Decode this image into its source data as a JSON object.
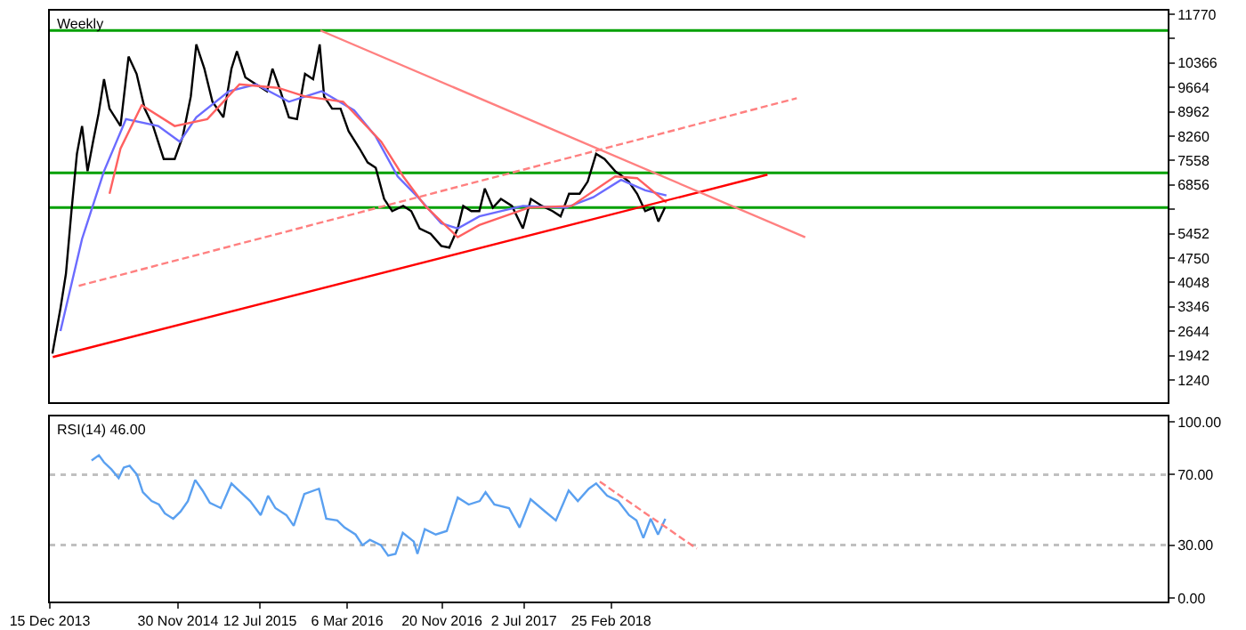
{
  "chart_data": [
    {
      "type": "line",
      "title": "Weekly",
      "xlim": [
        "2013-12-15",
        "2022-04-25"
      ],
      "ylim": [
        600,
        11870
      ],
      "yticks": [
        1240,
        1942,
        2644,
        3346,
        4048,
        4750,
        5452,
        {
          "value": 6154,
          "label": null
        },
        6856,
        7558,
        8260,
        8962,
        9664,
        10366,
        {
          "value": 11068,
          "label": null
        },
        11770
      ],
      "tick_labels": "y",
      "grid": false,
      "marker": "none",
      "line_style": "solid",
      "ref_lines": [
        {
          "axis": "y",
          "value": 11300,
          "color": "#00a000"
        },
        {
          "axis": "y",
          "value": 7200,
          "color": "#00a000"
        },
        {
          "axis": "y",
          "value": 6200,
          "color": "#00a000"
        }
      ],
      "series": [
        {
          "color": "#000000",
          "x": [
            "2013-12-22",
            "2014-01-13",
            "2014-01-28",
            "2014-02-12",
            "2014-02-27",
            "2014-03-13",
            "2014-03-28",
            "2014-04-12",
            "2014-04-27",
            "2014-05-12",
            "2014-05-27",
            "2014-06-26",
            "2014-07-18",
            "2014-08-09",
            "2014-08-31",
            "2014-09-23",
            "2014-10-22",
            "2014-11-21",
            "2014-12-13",
            "2015-01-04",
            "2015-01-19",
            "2015-02-10",
            "2015-03-04",
            "2015-04-03",
            "2015-04-25",
            "2015-05-10",
            "2015-06-02",
            "2015-07-01",
            "2015-07-31",
            "2015-08-15",
            "2015-09-06",
            "2015-09-29",
            "2015-10-21",
            "2015-11-12",
            "2015-12-04",
            "2015-12-22",
            "2016-01-03",
            "2016-01-25",
            "2016-02-17",
            "2016-03-10",
            "2016-04-09",
            "2016-05-01",
            "2016-05-23",
            "2016-06-15",
            "2016-07-07",
            "2016-08-06",
            "2016-08-28",
            "2016-09-20",
            "2016-10-20",
            "2016-11-18",
            "2016-12-10",
            "2017-01-02",
            "2017-01-17",
            "2017-02-08",
            "2017-03-02",
            "2017-03-17",
            "2017-04-08",
            "2017-04-30",
            "2017-05-30",
            "2017-06-29",
            "2017-07-21",
            "2017-08-20",
            "2017-09-18",
            "2017-10-10",
            "2017-11-02",
            "2017-12-01",
            "2017-12-23",
            "2018-01-15",
            "2018-02-07",
            "2018-03-08",
            "2018-03-22",
            "2018-04-14",
            "2018-05-07",
            "2018-05-29",
            "2018-06-21",
            "2018-07-04",
            "2018-07-22"
          ],
          "values": [
            2000,
            3300,
            4300,
            6100,
            7750,
            8550,
            7250,
            8100,
            8900,
            9900,
            9050,
            8550,
            10550,
            10050,
            9050,
            8550,
            7600,
            7600,
            8250,
            9400,
            10900,
            10200,
            9250,
            8800,
            10200,
            10700,
            9950,
            9750,
            9550,
            10200,
            9550,
            8800,
            8750,
            10050,
            9900,
            10900,
            9400,
            9050,
            9050,
            8400,
            7900,
            7500,
            7350,
            6450,
            6100,
            6250,
            6100,
            5600,
            5450,
            5100,
            5050,
            5600,
            6250,
            6100,
            6100,
            6750,
            6200,
            6450,
            6250,
            5600,
            6450,
            6250,
            6100,
            5950,
            6600,
            6600,
            6950,
            7750,
            7600,
            7250,
            7150,
            6950,
            6600,
            6100,
            6200,
            5800,
            6200
          ]
        },
        {
          "color": "#6b6bff",
          "x": [
            "2014-01-13",
            "2014-03-13",
            "2014-05-12",
            "2014-07-11",
            "2014-10-07",
            "2014-12-05",
            "2015-01-19",
            "2015-04-18",
            "2015-07-01",
            "2015-09-29",
            "2015-12-27",
            "2016-03-25",
            "2016-05-23",
            "2016-07-22",
            "2016-09-20",
            "2016-11-18",
            "2017-01-02",
            "2017-03-02",
            "2017-06-29",
            "2017-10-25",
            "2018-01-07",
            "2018-03-24",
            "2018-05-29",
            "2018-07-26"
          ],
          "values": [
            2650,
            5300,
            7250,
            8750,
            8550,
            8100,
            8800,
            9550,
            9750,
            9250,
            9550,
            9000,
            8250,
            7100,
            6450,
            5750,
            5600,
            5950,
            6250,
            6200,
            6500,
            7000,
            6700,
            6550
          ]
        },
        {
          "color": "#ff6060",
          "x": [
            "2014-05-27",
            "2014-06-26",
            "2014-08-23",
            "2014-11-21",
            "2015-02-18",
            "2015-05-17",
            "2015-08-30",
            "2015-11-12",
            "2016-02-24",
            "2016-06-07",
            "2016-08-06",
            "2016-10-05",
            "2017-01-02",
            "2017-03-02",
            "2017-07-15",
            "2017-11-09",
            "2018-03-08",
            "2018-05-07",
            "2018-07-26"
          ],
          "values": [
            6600,
            7900,
            9150,
            8550,
            8750,
            9750,
            9650,
            9400,
            9250,
            8100,
            7100,
            6250,
            5350,
            5700,
            6200,
            6250,
            7100,
            7050,
            6350
          ]
        },
        {
          "color": "#ff0000",
          "x": [
            "2013-12-23",
            "2019-04-28"
          ],
          "values": [
            1900,
            7150
          ]
        },
        {
          "color": "#ff8080",
          "line_style": "dashed",
          "x": [
            "2014-03-04",
            "2019-07-17"
          ],
          "values": [
            3950,
            9350
          ]
        },
        {
          "color": "#ff8080",
          "x": [
            "2015-12-24",
            "2019-08-09"
          ],
          "values": [
            11300,
            5350
          ]
        }
      ]
    },
    {
      "type": "line",
      "title": "RSI(14) 46.00",
      "xlim": [
        "2013-12-15",
        "2022-04-25"
      ],
      "ylim": [
        -2,
        103
      ],
      "yticks": [
        {
          "value": 0,
          "label": "0.00"
        },
        {
          "value": 30,
          "label": "30.00"
        },
        {
          "value": 70,
          "label": "70.00"
        },
        {
          "value": 100,
          "label": "100.00"
        }
      ],
      "xticks": [
        {
          "value": "2013-12-15",
          "label": "15 Dec 2013"
        },
        {
          "value": "2014-11-30",
          "label": "30 Nov 2014"
        },
        {
          "value": "2015-07-12",
          "label": "12 Jul 2015"
        },
        {
          "value": "2016-03-06",
          "label": "6 Mar 2016"
        },
        {
          "value": "2016-11-20",
          "label": "20 Nov 2016"
        },
        {
          "value": "2017-07-02",
          "label": "2 Jul 2017"
        },
        {
          "value": "2018-02-25",
          "label": "25 Feb 2018"
        }
      ],
      "grid": false,
      "marker": "none",
      "line_style": "solid",
      "ref_lines": [
        {
          "axis": "y",
          "value": 30,
          "color": "#c0c0c0",
          "line_style": "dotted"
        },
        {
          "axis": "y",
          "value": 70,
          "color": "#c0c0c0",
          "line_style": "dotted"
        }
      ],
      "series": [
        {
          "color": "#5aa0f0",
          "x": [
            "2014-04-08",
            "2014-04-28",
            "2014-05-12",
            "2014-06-01",
            "2014-06-21",
            "2014-07-05",
            "2014-07-21",
            "2014-08-10",
            "2014-08-26",
            "2014-09-19",
            "2014-10-09",
            "2014-10-25",
            "2014-11-17",
            "2014-12-07",
            "2014-12-27",
            "2015-01-16",
            "2015-02-05",
            "2015-02-25",
            "2015-03-27",
            "2015-04-25",
            "2015-05-15",
            "2015-06-15",
            "2015-07-14",
            "2015-08-03",
            "2015-08-23",
            "2015-09-22",
            "2015-10-12",
            "2015-11-10",
            "2015-12-20",
            "2016-01-09",
            "2016-02-08",
            "2016-02-28",
            "2016-03-29",
            "2016-04-17",
            "2016-05-07",
            "2016-06-06",
            "2016-06-26",
            "2016-07-16",
            "2016-08-05",
            "2016-09-04",
            "2016-09-14",
            "2016-10-04",
            "2016-11-03",
            "2016-12-03",
            "2017-01-02",
            "2017-02-01",
            "2017-03-03",
            "2017-03-19",
            "2017-04-12",
            "2017-05-22",
            "2017-06-20",
            "2017-07-20",
            "2017-08-29",
            "2017-09-27",
            "2017-10-18",
            "2017-11-01",
            "2017-11-26",
            "2017-12-26",
            "2018-01-15",
            "2018-02-14",
            "2018-03-16",
            "2018-04-15",
            "2018-05-05",
            "2018-05-24",
            "2018-06-13",
            "2018-07-03",
            "2018-07-23"
          ],
          "values": [
            78,
            81,
            77,
            73,
            68,
            74,
            75,
            70,
            60,
            55,
            53,
            48,
            45,
            49,
            55,
            67,
            61,
            54,
            51,
            65,
            61,
            55,
            47,
            58,
            51,
            47,
            41,
            59,
            62,
            45,
            44,
            40,
            36,
            30,
            33,
            30,
            24,
            25,
            37,
            32,
            25,
            39,
            36,
            38,
            57,
            53,
            55,
            60,
            53,
            51,
            40,
            56,
            49,
            44,
            54,
            61,
            55,
            62,
            65,
            58,
            55,
            47,
            44,
            34,
            45,
            36,
            45
          ]
        },
        {
          "color": "#ff8080",
          "line_style": "dashed",
          "x": [
            "2018-01-25",
            "2018-10-17"
          ],
          "values": [
            66,
            28
          ]
        }
      ]
    }
  ]
}
